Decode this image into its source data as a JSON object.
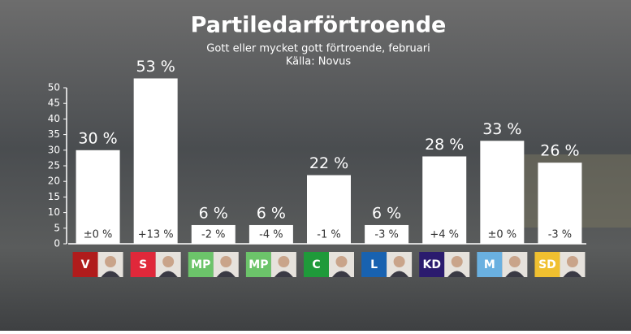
{
  "chart_data": {
    "type": "bar",
    "title": "Partiledarförtroende",
    "subtitle": "Gott eller mycket gott förtroende, februari",
    "source": "Källa: Novus",
    "categories": [
      "V",
      "S",
      "MP",
      "MP",
      "C",
      "L",
      "KD",
      "M",
      "SD"
    ],
    "values": [
      30,
      53,
      6,
      6,
      22,
      6,
      28,
      33,
      26
    ],
    "value_labels": [
      "30 %",
      "53 %",
      "6 %",
      "6 %",
      "22 %",
      "6 %",
      "28 %",
      "33 %",
      "26 %"
    ],
    "change_labels": [
      "±0 %",
      "+13 %",
      "-2 %",
      "-4 %",
      "-1 %",
      "-3 %",
      "+4 %",
      "±0 %",
      "-3 %"
    ],
    "badge_colors": [
      "#b01c1c",
      "#e0283a",
      "#6cc46a",
      "#6cc46a",
      "#1f9a3a",
      "#1862b0",
      "#2b1b6e",
      "#6ab0e0",
      "#f0c030"
    ],
    "color": "#ffffff",
    "ylim": [
      0,
      50
    ],
    "yticks": [
      0,
      5,
      10,
      15,
      20,
      25,
      30,
      35,
      40,
      45,
      50
    ]
  }
}
